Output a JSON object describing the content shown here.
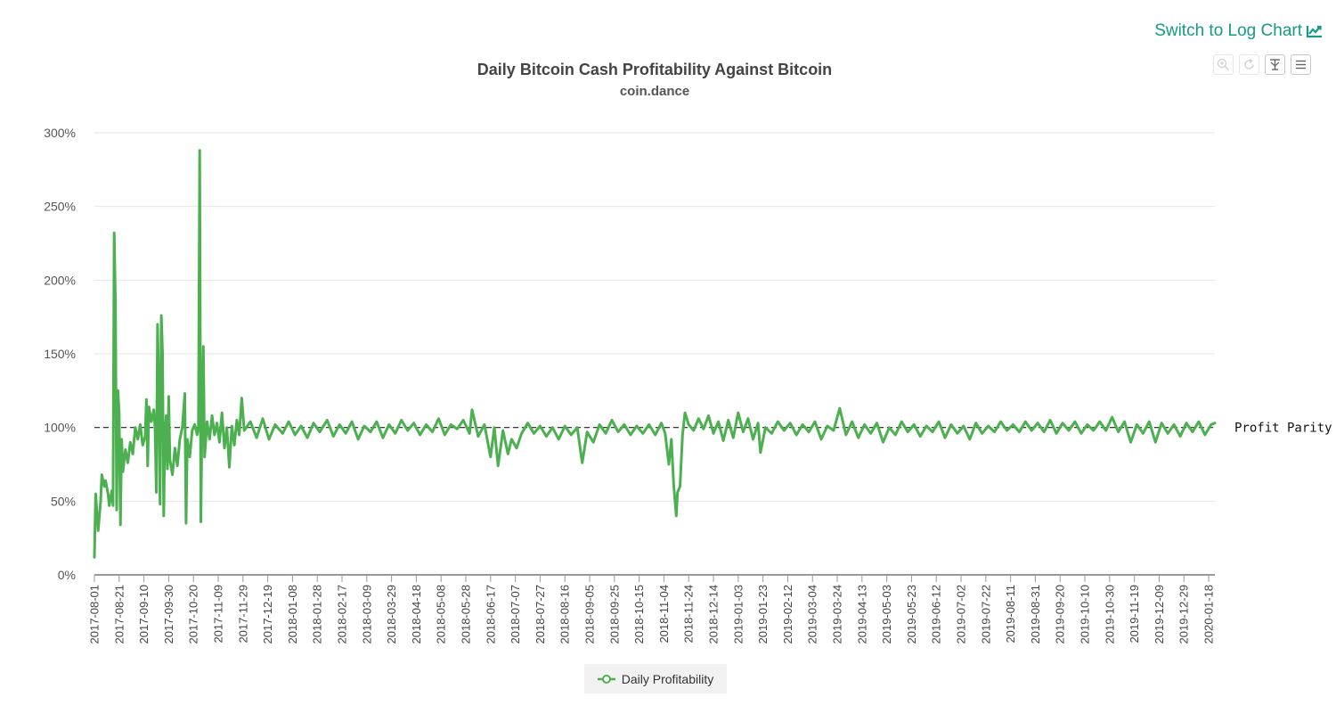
{
  "header": {
    "switch_label": "Switch to Log Chart"
  },
  "toolbar": {
    "icons": [
      "zoom-in-icon",
      "reset-zoom-icon",
      "pan-icon",
      "menu-icon"
    ]
  },
  "colors": {
    "series": "#4caf50",
    "accent": "#159a86",
    "parity_line": "#222222"
  },
  "chart_data": {
    "type": "line",
    "title": "Daily Bitcoin Cash Profitability Against Bitcoin",
    "subtitle": "coin.dance",
    "xlabel": "",
    "ylabel": "",
    "ylim": [
      0,
      300
    ],
    "y_ticks": [
      0,
      50,
      100,
      150,
      200,
      250,
      300
    ],
    "y_tick_labels": [
      "0%",
      "50%",
      "100%",
      "150%",
      "200%",
      "250%",
      "300%"
    ],
    "x_tick_labels": [
      "2017-08-01",
      "2017-08-21",
      "2017-09-10",
      "2017-09-30",
      "2017-10-20",
      "2017-11-09",
      "2017-11-29",
      "2017-12-19",
      "2018-01-08",
      "2018-01-28",
      "2018-02-17",
      "2018-03-09",
      "2018-03-29",
      "2018-04-18",
      "2018-05-08",
      "2018-05-28",
      "2018-06-17",
      "2018-07-07",
      "2018-07-27",
      "2018-08-16",
      "2018-09-05",
      "2018-09-25",
      "2018-10-15",
      "2018-11-04",
      "2018-11-24",
      "2018-12-14",
      "2019-01-03",
      "2019-01-23",
      "2019-02-12",
      "2019-03-04",
      "2019-03-24",
      "2019-04-13",
      "2019-05-03",
      "2019-05-23",
      "2019-06-12",
      "2019-07-02",
      "2019-07-22",
      "2019-08-11",
      "2019-08-31",
      "2019-09-20",
      "2019-10-10",
      "2019-10-30",
      "2019-11-19",
      "2019-12-09",
      "2019-12-29",
      "2020-01-18"
    ],
    "x_range": [
      "2017-08-01",
      "2020-01-23"
    ],
    "grid": true,
    "legend": "bottom-center",
    "plot_line": {
      "value": 100,
      "label": "Profit Parity",
      "style": "dashed"
    },
    "series": [
      {
        "name": "Daily Profitability",
        "points": [
          [
            "2017-08-01",
            12
          ],
          [
            "2017-08-02",
            55
          ],
          [
            "2017-08-04",
            30
          ],
          [
            "2017-08-06",
            50
          ],
          [
            "2017-08-07",
            68
          ],
          [
            "2017-08-09",
            60
          ],
          [
            "2017-08-10",
            64
          ],
          [
            "2017-08-12",
            55
          ],
          [
            "2017-08-13",
            47
          ],
          [
            "2017-08-15",
            57
          ],
          [
            "2017-08-16",
            47
          ],
          [
            "2017-08-17",
            232
          ],
          [
            "2017-08-18",
            185
          ],
          [
            "2017-08-19",
            44
          ],
          [
            "2017-08-20",
            125
          ],
          [
            "2017-08-21",
            110
          ],
          [
            "2017-08-22",
            34
          ],
          [
            "2017-08-23",
            92
          ],
          [
            "2017-08-24",
            70
          ],
          [
            "2017-08-26",
            85
          ],
          [
            "2017-08-28",
            76
          ],
          [
            "2017-08-30",
            90
          ],
          [
            "2017-09-01",
            82
          ],
          [
            "2017-09-03",
            100
          ],
          [
            "2017-09-05",
            92
          ],
          [
            "2017-09-07",
            102
          ],
          [
            "2017-09-09",
            88
          ],
          [
            "2017-09-11",
            94
          ],
          [
            "2017-09-12",
            119
          ],
          [
            "2017-09-13",
            74
          ],
          [
            "2017-09-14",
            114
          ],
          [
            "2017-09-16",
            104
          ],
          [
            "2017-09-18",
            112
          ],
          [
            "2017-09-19",
            99
          ],
          [
            "2017-09-20",
            56
          ],
          [
            "2017-09-21",
            170
          ],
          [
            "2017-09-22",
            125
          ],
          [
            "2017-09-23",
            48
          ],
          [
            "2017-09-24",
            176
          ],
          [
            "2017-09-25",
            150
          ],
          [
            "2017-09-26",
            40
          ],
          [
            "2017-09-27",
            96
          ],
          [
            "2017-09-28",
            108
          ],
          [
            "2017-09-29",
            72
          ],
          [
            "2017-09-30",
            121
          ],
          [
            "2017-10-01",
            78
          ],
          [
            "2017-10-03",
            68
          ],
          [
            "2017-10-05",
            86
          ],
          [
            "2017-10-07",
            74
          ],
          [
            "2017-10-09",
            92
          ],
          [
            "2017-10-11",
            100
          ],
          [
            "2017-10-13",
            123
          ],
          [
            "2017-10-14",
            35
          ],
          [
            "2017-10-15",
            92
          ],
          [
            "2017-10-17",
            80
          ],
          [
            "2017-10-19",
            98
          ],
          [
            "2017-10-21",
            102
          ],
          [
            "2017-10-23",
            95
          ],
          [
            "2017-10-24",
            100
          ],
          [
            "2017-10-25",
            288
          ],
          [
            "2017-10-26",
            36
          ],
          [
            "2017-10-27",
            108
          ],
          [
            "2017-10-28",
            155
          ],
          [
            "2017-10-29",
            80
          ],
          [
            "2017-10-31",
            104
          ],
          [
            "2017-11-02",
            92
          ],
          [
            "2017-11-04",
            108
          ],
          [
            "2017-11-06",
            95
          ],
          [
            "2017-11-08",
            103
          ],
          [
            "2017-11-10",
            90
          ],
          [
            "2017-11-12",
            110
          ],
          [
            "2017-11-14",
            86
          ],
          [
            "2017-11-16",
            100
          ],
          [
            "2017-11-18",
            73
          ],
          [
            "2017-11-20",
            101
          ],
          [
            "2017-11-22",
            88
          ],
          [
            "2017-11-24",
            105
          ],
          [
            "2017-11-26",
            95
          ],
          [
            "2017-11-28",
            120
          ],
          [
            "2017-11-30",
            98
          ],
          [
            "2017-12-05",
            104
          ],
          [
            "2017-12-10",
            93
          ],
          [
            "2017-12-15",
            106
          ],
          [
            "2017-12-20",
            92
          ],
          [
            "2017-12-25",
            102
          ],
          [
            "2017-12-31",
            96
          ],
          [
            "2018-01-05",
            104
          ],
          [
            "2018-01-10",
            95
          ],
          [
            "2018-01-15",
            101
          ],
          [
            "2018-01-20",
            93
          ],
          [
            "2018-01-25",
            103
          ],
          [
            "2018-01-30",
            97
          ],
          [
            "2018-02-05",
            105
          ],
          [
            "2018-02-10",
            94
          ],
          [
            "2018-02-15",
            102
          ],
          [
            "2018-02-20",
            96
          ],
          [
            "2018-02-25",
            104
          ],
          [
            "2018-03-02",
            92
          ],
          [
            "2018-03-07",
            101
          ],
          [
            "2018-03-12",
            97
          ],
          [
            "2018-03-17",
            104
          ],
          [
            "2018-03-22",
            93
          ],
          [
            "2018-03-27",
            102
          ],
          [
            "2018-04-01",
            96
          ],
          [
            "2018-04-06",
            105
          ],
          [
            "2018-04-11",
            98
          ],
          [
            "2018-04-16",
            103
          ],
          [
            "2018-04-21",
            95
          ],
          [
            "2018-04-26",
            102
          ],
          [
            "2018-05-01",
            97
          ],
          [
            "2018-05-06",
            106
          ],
          [
            "2018-05-11",
            95
          ],
          [
            "2018-05-16",
            102
          ],
          [
            "2018-05-21",
            99
          ],
          [
            "2018-05-26",
            105
          ],
          [
            "2018-05-31",
            96
          ],
          [
            "2018-06-02",
            112
          ],
          [
            "2018-06-07",
            94
          ],
          [
            "2018-06-12",
            102
          ],
          [
            "2018-06-17",
            80
          ],
          [
            "2018-06-20",
            100
          ],
          [
            "2018-06-23",
            74
          ],
          [
            "2018-06-27",
            98
          ],
          [
            "2018-07-01",
            82
          ],
          [
            "2018-07-04",
            92
          ],
          [
            "2018-07-08",
            86
          ],
          [
            "2018-07-12",
            96
          ],
          [
            "2018-07-17",
            103
          ],
          [
            "2018-07-22",
            96
          ],
          [
            "2018-07-27",
            101
          ],
          [
            "2018-08-01",
            94
          ],
          [
            "2018-08-06",
            100
          ],
          [
            "2018-08-11",
            92
          ],
          [
            "2018-08-16",
            101
          ],
          [
            "2018-08-21",
            95
          ],
          [
            "2018-08-26",
            100
          ],
          [
            "2018-08-30",
            76
          ],
          [
            "2018-09-03",
            97
          ],
          [
            "2018-09-08",
            90
          ],
          [
            "2018-09-13",
            102
          ],
          [
            "2018-09-18",
            96
          ],
          [
            "2018-09-23",
            105
          ],
          [
            "2018-09-28",
            97
          ],
          [
            "2018-10-03",
            102
          ],
          [
            "2018-10-08",
            95
          ],
          [
            "2018-10-13",
            101
          ],
          [
            "2018-10-18",
            96
          ],
          [
            "2018-10-23",
            102
          ],
          [
            "2018-10-28",
            95
          ],
          [
            "2018-11-02",
            103
          ],
          [
            "2018-11-05",
            96
          ],
          [
            "2018-11-08",
            75
          ],
          [
            "2018-11-10",
            92
          ],
          [
            "2018-11-12",
            60
          ],
          [
            "2018-11-14",
            40
          ],
          [
            "2018-11-15",
            56
          ],
          [
            "2018-11-17",
            60
          ],
          [
            "2018-11-19",
            95
          ],
          [
            "2018-11-21",
            110
          ],
          [
            "2018-11-24",
            102
          ],
          [
            "2018-11-28",
            98
          ],
          [
            "2018-12-02",
            106
          ],
          [
            "2018-12-06",
            99
          ],
          [
            "2018-12-10",
            108
          ],
          [
            "2018-12-14",
            96
          ],
          [
            "2018-12-18",
            104
          ],
          [
            "2018-12-22",
            91
          ],
          [
            "2018-12-26",
            105
          ],
          [
            "2018-12-30",
            93
          ],
          [
            "2019-01-03",
            110
          ],
          [
            "2019-01-07",
            97
          ],
          [
            "2019-01-11",
            106
          ],
          [
            "2019-01-15",
            92
          ],
          [
            "2019-01-19",
            103
          ],
          [
            "2019-01-21",
            83
          ],
          [
            "2019-01-25",
            100
          ],
          [
            "2019-01-30",
            96
          ],
          [
            "2019-02-04",
            104
          ],
          [
            "2019-02-09",
            98
          ],
          [
            "2019-02-14",
            103
          ],
          [
            "2019-02-19",
            95
          ],
          [
            "2019-02-24",
            102
          ],
          [
            "2019-03-01",
            97
          ],
          [
            "2019-03-06",
            104
          ],
          [
            "2019-03-11",
            92
          ],
          [
            "2019-03-16",
            101
          ],
          [
            "2019-03-21",
            98
          ],
          [
            "2019-03-26",
            113
          ],
          [
            "2019-03-31",
            95
          ],
          [
            "2019-04-05",
            104
          ],
          [
            "2019-04-10",
            93
          ],
          [
            "2019-04-15",
            102
          ],
          [
            "2019-04-20",
            96
          ],
          [
            "2019-04-25",
            103
          ],
          [
            "2019-04-30",
            90
          ],
          [
            "2019-05-05",
            100
          ],
          [
            "2019-05-10",
            95
          ],
          [
            "2019-05-15",
            104
          ],
          [
            "2019-05-20",
            97
          ],
          [
            "2019-05-25",
            102
          ],
          [
            "2019-05-30",
            94
          ],
          [
            "2019-06-04",
            101
          ],
          [
            "2019-06-09",
            97
          ],
          [
            "2019-06-14",
            104
          ],
          [
            "2019-06-19",
            93
          ],
          [
            "2019-06-24",
            102
          ],
          [
            "2019-06-29",
            96
          ],
          [
            "2019-07-04",
            101
          ],
          [
            "2019-07-09",
            92
          ],
          [
            "2019-07-14",
            103
          ],
          [
            "2019-07-19",
            96
          ],
          [
            "2019-07-24",
            101
          ],
          [
            "2019-07-29",
            97
          ],
          [
            "2019-08-03",
            104
          ],
          [
            "2019-08-08",
            98
          ],
          [
            "2019-08-13",
            102
          ],
          [
            "2019-08-18",
            97
          ],
          [
            "2019-08-23",
            104
          ],
          [
            "2019-08-28",
            98
          ],
          [
            "2019-09-02",
            103
          ],
          [
            "2019-09-07",
            97
          ],
          [
            "2019-09-12",
            105
          ],
          [
            "2019-09-17",
            96
          ],
          [
            "2019-09-22",
            103
          ],
          [
            "2019-09-27",
            98
          ],
          [
            "2019-10-02",
            104
          ],
          [
            "2019-10-07",
            96
          ],
          [
            "2019-10-12",
            102
          ],
          [
            "2019-10-17",
            98
          ],
          [
            "2019-10-22",
            104
          ],
          [
            "2019-10-27",
            98
          ],
          [
            "2019-11-01",
            107
          ],
          [
            "2019-11-06",
            97
          ],
          [
            "2019-11-11",
            104
          ],
          [
            "2019-11-16",
            90
          ],
          [
            "2019-11-21",
            102
          ],
          [
            "2019-11-26",
            96
          ],
          [
            "2019-12-01",
            104
          ],
          [
            "2019-12-06",
            90
          ],
          [
            "2019-12-11",
            103
          ],
          [
            "2019-12-16",
            96
          ],
          [
            "2019-12-21",
            102
          ],
          [
            "2019-12-26",
            94
          ],
          [
            "2019-12-31",
            103
          ],
          [
            "2020-01-05",
            97
          ],
          [
            "2020-01-10",
            104
          ],
          [
            "2020-01-15",
            95
          ],
          [
            "2020-01-20",
            102
          ],
          [
            "2020-01-23",
            103
          ]
        ]
      }
    ]
  }
}
